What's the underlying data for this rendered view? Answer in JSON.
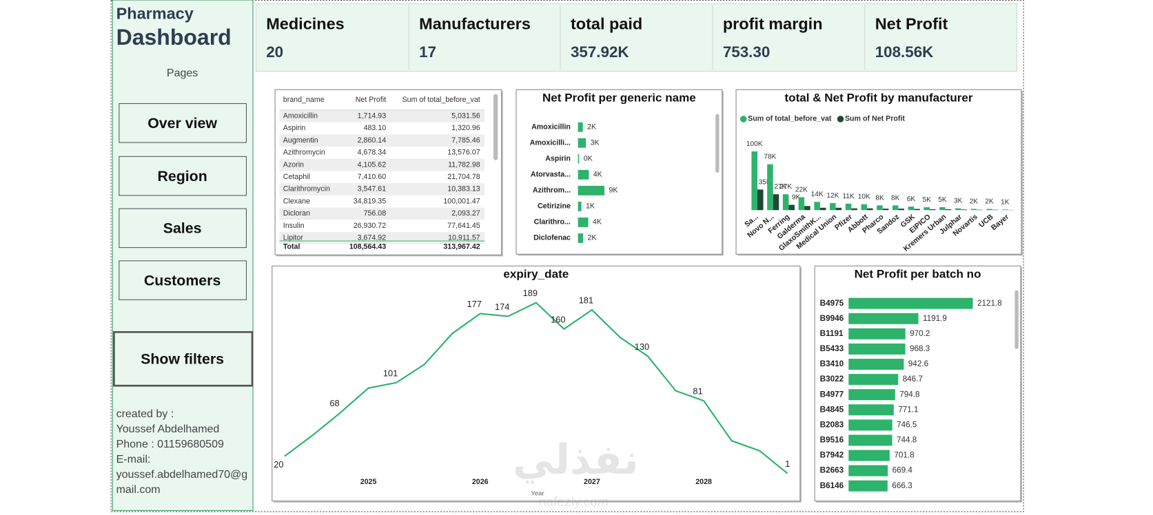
{
  "sidebar": {
    "title_line1": "Pharmacy",
    "title_line2": "Dashboard",
    "pages_label": "Pages",
    "buttons": [
      "Over view",
      "Region",
      "Sales",
      "Customers"
    ],
    "filters_button": "Show filters",
    "credits": [
      "created by :",
      "Youssef Abdelhamed",
      "Phone : 01159680509",
      "E-mail:",
      "youssef.abdelhamed70@g",
      "mail.com"
    ]
  },
  "kpis": [
    {
      "title": "Medicines",
      "value": "20"
    },
    {
      "title": "Manufacturers",
      "value": "17"
    },
    {
      "title": "total paid",
      "value": "357.92K"
    },
    {
      "title": "profit margin",
      "value": "753.30"
    },
    {
      "title": "Net Profit",
      "value": "108.56K"
    }
  ],
  "table": {
    "columns": [
      "brand_name",
      "Net Profit",
      "Sum of total_before_vat"
    ],
    "rows": [
      [
        "Amoxicillin",
        "1,714.93",
        "5,031.56"
      ],
      [
        "Aspirin",
        "483.10",
        "1,320.96"
      ],
      [
        "Augmentin",
        "2,860.14",
        "7,785.46"
      ],
      [
        "Azithromycin",
        "4,678.34",
        "13,576.07"
      ],
      [
        "Azorin",
        "4,105.62",
        "11,782.98"
      ],
      [
        "Cetaphil",
        "7,410.60",
        "21,704.78"
      ],
      [
        "Clarithromycin",
        "3,547.61",
        "10,383.13"
      ],
      [
        "Clexane",
        "34,819.35",
        "100,001.47"
      ],
      [
        "Dicloran",
        "756.08",
        "2,093.27"
      ],
      [
        "Insulin",
        "26,930.72",
        "77,641.45"
      ],
      [
        "Lipitor",
        "3,674.92",
        "10,911.57"
      ]
    ],
    "total": [
      "Total",
      "108,564.43",
      "313,967.42"
    ]
  },
  "chart_data": [
    {
      "type": "bar",
      "horizontal": true,
      "title": "Net Profit per generic name",
      "categories": [
        "Amoxicillin",
        "Amoxicilli...",
        "Aspirin",
        "Atorvasta...",
        "Azithrom...",
        "Cetirizine",
        "Clarithro...",
        "Diclofenac"
      ],
      "values": [
        1700,
        2800,
        400,
        3800,
        9300,
        1200,
        3600,
        1800
      ],
      "value_labels": [
        "2K",
        "3K",
        "0K",
        "4K",
        "9K",
        "1K",
        "4K",
        "2K"
      ],
      "color": "#2db36b"
    },
    {
      "type": "bar",
      "title": "total & Net Profit by manufacturer",
      "categories": [
        "Sa...",
        "Novo N...",
        "Ferring",
        "Galderma",
        "GlaxoSmithK...",
        "Medical Union",
        "Pfizer",
        "Abbott",
        "Pharco",
        "Sandoz",
        "GSK",
        "EIPICO",
        "Kremers Urban",
        "Julphar",
        "Novartis",
        "UCB",
        "Bayer"
      ],
      "series": [
        {
          "name": "Sum of total_before_vat",
          "color": "#2db36b",
          "values": [
            100000,
            78000,
            27000,
            22000,
            14000,
            12000,
            11000,
            10000,
            8000,
            8000,
            6000,
            5000,
            5000,
            3000,
            2000,
            2000,
            1000
          ],
          "value_labels": [
            "100K",
            "78K",
            "27K",
            "22K",
            "14K",
            "12K",
            "11K",
            "10K",
            "8K",
            "8K",
            "6K",
            "5K",
            "5K",
            "3K",
            "2K",
            "2K",
            "1K"
          ]
        },
        {
          "name": "Sum of Net Profit",
          "color": "#1e4a34",
          "values": [
            35000,
            27000,
            9000,
            7000,
            4000,
            4000,
            3000,
            3000,
            2500,
            2500,
            2000,
            1500,
            1500,
            1000,
            600,
            600,
            300
          ],
          "value_labels": [
            "35K",
            "27K",
            "9K",
            null,
            null,
            null,
            null,
            null,
            null,
            null,
            null,
            null,
            null,
            null,
            null,
            null,
            null
          ]
        }
      ],
      "legend": "top-left"
    },
    {
      "type": "line",
      "title": "expiry_date",
      "x_label": "Year",
      "categories": [
        null,
        null,
        null,
        "2025",
        null,
        null,
        null,
        "2026",
        null,
        null,
        null,
        "2027",
        null,
        null,
        null,
        "2028",
        null,
        null,
        null
      ],
      "values": [
        20,
        43,
        68,
        95,
        101,
        121,
        155,
        177,
        174,
        189,
        160,
        181,
        151,
        130,
        92,
        81,
        37,
        26,
        1
      ],
      "value_labels": [
        "20",
        null,
        "68",
        null,
        "101",
        null,
        null,
        "177",
        "174",
        "189",
        "160",
        "181",
        null,
        "130",
        null,
        "81",
        null,
        null,
        "1"
      ],
      "color": "#2db36b"
    },
    {
      "type": "bar",
      "horizontal": true,
      "title": "Net Profit per batch no",
      "categories": [
        "B4975",
        "B9946",
        "B1191",
        "B5433",
        "B3410",
        "B3022",
        "B4977",
        "B4845",
        "B2083",
        "B9516",
        "B7942",
        "B2663",
        "B6146"
      ],
      "values": [
        2121.8,
        1191.9,
        970.2,
        968.3,
        942.6,
        846.7,
        794.8,
        771.1,
        746.5,
        744.8,
        701.8,
        669.4,
        666.3
      ],
      "color": "#2db36b"
    }
  ],
  "watermark": {
    "text": "نفذلي",
    "url": "nafezly.com"
  }
}
